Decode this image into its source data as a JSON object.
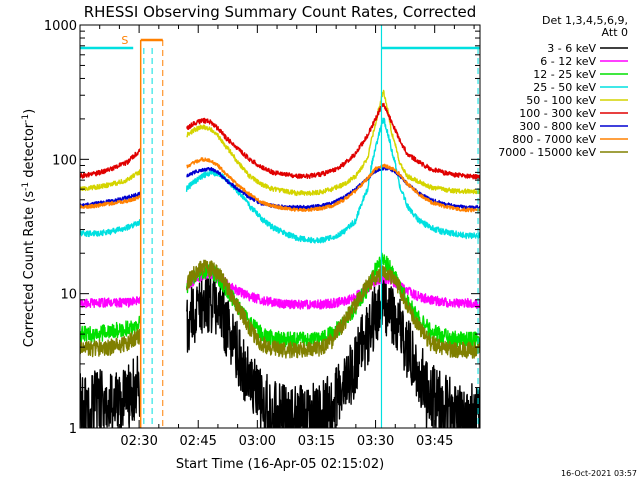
{
  "chart_data": {
    "type": "line",
    "title": "RHESSI Observing Summary Count Rates, Corrected",
    "xlabel": "Start Time (16-Apr-05 02:15:02)",
    "ylabel": "Corrected Count Rate (s⁻¹ detector⁻¹)",
    "ylabel_parts": {
      "main": "Corrected Count Rate (s",
      "sup1": "-1",
      "mid": " detector",
      "sup2": "-1",
      "end": ")"
    },
    "yscale": "log",
    "ylim": [
      1,
      1000
    ],
    "xlim_minutes": [
      0,
      101.5
    ],
    "x_ticks": [
      "02:30",
      "02:45",
      "03:00",
      "03:15",
      "03:30",
      "03:45"
    ],
    "x_tick_minutes": [
      15,
      30,
      45,
      60,
      75,
      90
    ],
    "y_ticks": [
      "1",
      "10",
      "100",
      "1000"
    ],
    "y_tick_values": [
      1,
      10,
      100,
      1000
    ],
    "legend_header": [
      "Det 1,3,4,5,6,9,",
      "Att 0"
    ],
    "legend_position": "right",
    "timestamp": "16-Oct-2021 03:57",
    "saa_marker": "S",
    "grid": false,
    "colors": {
      "night_marker": "#00e0e0",
      "saa_marker": "#ff8000",
      "axis": "#000000"
    },
    "gaps": [
      [
        15.3,
        27.0
      ]
    ],
    "series": [
      {
        "name": "3 - 6 keV",
        "color": "#000000",
        "x": [
          0,
          4,
          8,
          12,
          15,
          27,
          29,
          31,
          33,
          35,
          37,
          40,
          43,
          46,
          49,
          52,
          55,
          58,
          61,
          64,
          67,
          70,
          73,
          75,
          77,
          79,
          81,
          83,
          86,
          89,
          92,
          95,
          98,
          101
        ],
        "y": [
          1.5,
          1.6,
          1.5,
          1.8,
          2.0,
          5.5,
          7.0,
          8.5,
          9.0,
          8.0,
          6.0,
          3.5,
          2.2,
          1.6,
          1.3,
          1.2,
          1.2,
          1.2,
          1.3,
          1.5,
          2.0,
          3.0,
          5.0,
          7.0,
          8.5,
          7.5,
          5.5,
          4.0,
          2.5,
          1.8,
          1.5,
          1.3,
          1.3,
          1.2
        ]
      },
      {
        "name": "6 - 12 keV",
        "color": "#ff00ff",
        "x": [
          0,
          4,
          8,
          12,
          15,
          27,
          29,
          31,
          33,
          35,
          37,
          40,
          43,
          46,
          49,
          52,
          55,
          58,
          61,
          64,
          67,
          70,
          73,
          75,
          77,
          79,
          81,
          83,
          86,
          89,
          92,
          95,
          98,
          101
        ],
        "y": [
          8.5,
          8.5,
          8.6,
          8.6,
          8.8,
          11.5,
          12.5,
          13.5,
          14.0,
          13.0,
          12.0,
          10.5,
          9.5,
          9.0,
          8.6,
          8.4,
          8.3,
          8.3,
          8.3,
          8.5,
          8.8,
          9.5,
          11.0,
          12.5,
          13.0,
          12.5,
          11.5,
          10.5,
          9.5,
          9.0,
          8.7,
          8.5,
          8.5,
          8.4
        ]
      },
      {
        "name": "12 - 25 keV",
        "color": "#00e000",
        "x": [
          0,
          4,
          8,
          12,
          15,
          27,
          29,
          31,
          33,
          35,
          37,
          40,
          43,
          46,
          49,
          52,
          55,
          58,
          61,
          64,
          67,
          70,
          73,
          75,
          77,
          79,
          81,
          83,
          86,
          89,
          92,
          95,
          98,
          101
        ],
        "y": [
          5.0,
          5.0,
          5.2,
          5.5,
          6.0,
          11.0,
          13.0,
          14.5,
          15.0,
          13.5,
          11.0,
          8.0,
          6.0,
          5.0,
          4.6,
          4.5,
          4.5,
          4.5,
          4.6,
          5.0,
          6.0,
          8.0,
          11.0,
          15.0,
          18.0,
          15.0,
          11.5,
          8.5,
          6.5,
          5.3,
          4.8,
          4.6,
          4.5,
          4.5
        ]
      },
      {
        "name": "25 - 50 keV",
        "color": "#00e0e0",
        "x": [
          0,
          4,
          8,
          12,
          15,
          27,
          29,
          31,
          33,
          35,
          37,
          40,
          43,
          46,
          49,
          52,
          55,
          58,
          61,
          64,
          67,
          70,
          73,
          75,
          77,
          79,
          81,
          83,
          86,
          89,
          92,
          95,
          98,
          101
        ],
        "y": [
          28,
          28,
          29,
          31,
          34,
          60,
          68,
          75,
          80,
          78,
          72,
          58,
          45,
          36,
          31,
          28,
          26,
          25,
          25,
          26,
          29,
          35,
          60,
          120,
          200,
          120,
          65,
          45,
          35,
          31,
          29,
          28,
          27,
          27
        ]
      },
      {
        "name": "50 - 100 keV",
        "color": "#d4d400",
        "x": [
          0,
          4,
          8,
          12,
          15,
          27,
          29,
          31,
          33,
          35,
          37,
          40,
          43,
          46,
          49,
          52,
          55,
          58,
          61,
          64,
          67,
          70,
          73,
          75,
          77,
          79,
          81,
          83,
          86,
          89,
          92,
          95,
          98,
          101
        ],
        "y": [
          60,
          62,
          65,
          70,
          80,
          150,
          165,
          175,
          170,
          150,
          125,
          95,
          75,
          65,
          60,
          58,
          56,
          56,
          57,
          60,
          65,
          75,
          100,
          180,
          320,
          160,
          95,
          75,
          68,
          62,
          60,
          58,
          58,
          57
        ]
      },
      {
        "name": "100 - 300 keV",
        "color": "#e00000",
        "x": [
          0,
          4,
          8,
          12,
          15,
          27,
          29,
          31,
          33,
          35,
          37,
          40,
          43,
          46,
          49,
          52,
          55,
          58,
          61,
          64,
          67,
          70,
          73,
          75,
          77,
          79,
          81,
          83,
          86,
          89,
          92,
          95,
          98,
          101
        ],
        "y": [
          75,
          78,
          85,
          95,
          115,
          170,
          185,
          195,
          190,
          170,
          145,
          120,
          100,
          88,
          80,
          77,
          75,
          75,
          77,
          82,
          92,
          110,
          150,
          200,
          260,
          190,
          140,
          110,
          95,
          85,
          80,
          77,
          75,
          74
        ]
      },
      {
        "name": "300 - 800 keV",
        "color": "#0000d0",
        "x": [
          0,
          4,
          8,
          12,
          15,
          27,
          29,
          31,
          33,
          35,
          37,
          40,
          43,
          46,
          49,
          52,
          55,
          58,
          61,
          64,
          67,
          70,
          73,
          75,
          77,
          79,
          81,
          83,
          86,
          89,
          92,
          95,
          98,
          101
        ],
        "y": [
          45,
          47,
          49,
          52,
          55,
          75,
          80,
          84,
          85,
          80,
          70,
          60,
          52,
          47,
          45,
          44,
          44,
          44,
          45,
          47,
          52,
          60,
          72,
          82,
          86,
          84,
          76,
          66,
          56,
          50,
          47,
          45,
          44,
          44
        ]
      },
      {
        "name": "800 - 7000 keV",
        "color": "#ff8000",
        "x": [
          0,
          4,
          8,
          12,
          15,
          27,
          29,
          31,
          33,
          35,
          37,
          40,
          43,
          46,
          49,
          52,
          55,
          58,
          61,
          64,
          67,
          70,
          73,
          75,
          77,
          79,
          81,
          83,
          86,
          89,
          92,
          95,
          98,
          101
        ],
        "y": [
          44,
          45,
          47,
          49,
          52,
          88,
          95,
          100,
          98,
          90,
          78,
          64,
          55,
          48,
          45,
          43,
          42,
          42,
          43,
          45,
          50,
          58,
          72,
          85,
          90,
          86,
          78,
          66,
          55,
          48,
          45,
          43,
          42,
          42
        ]
      },
      {
        "name": "7000 - 15000 keV",
        "color": "#808000",
        "x": [
          0,
          4,
          8,
          12,
          15,
          27,
          29,
          31,
          33,
          35,
          37,
          40,
          43,
          46,
          49,
          52,
          55,
          58,
          61,
          64,
          67,
          70,
          73,
          75,
          77,
          79,
          81,
          83,
          86,
          89,
          92,
          95,
          98,
          101
        ],
        "y": [
          3.8,
          3.9,
          4.0,
          4.3,
          4.8,
          12.0,
          14.0,
          15.5,
          15.5,
          14.0,
          11.5,
          8.0,
          5.5,
          4.2,
          3.9,
          3.8,
          3.8,
          3.8,
          3.9,
          4.5,
          6.0,
          8.5,
          11.5,
          13.5,
          14.5,
          13.5,
          11.0,
          8.0,
          5.5,
          4.3,
          3.9,
          3.8,
          3.8,
          3.8
        ]
      }
    ]
  }
}
